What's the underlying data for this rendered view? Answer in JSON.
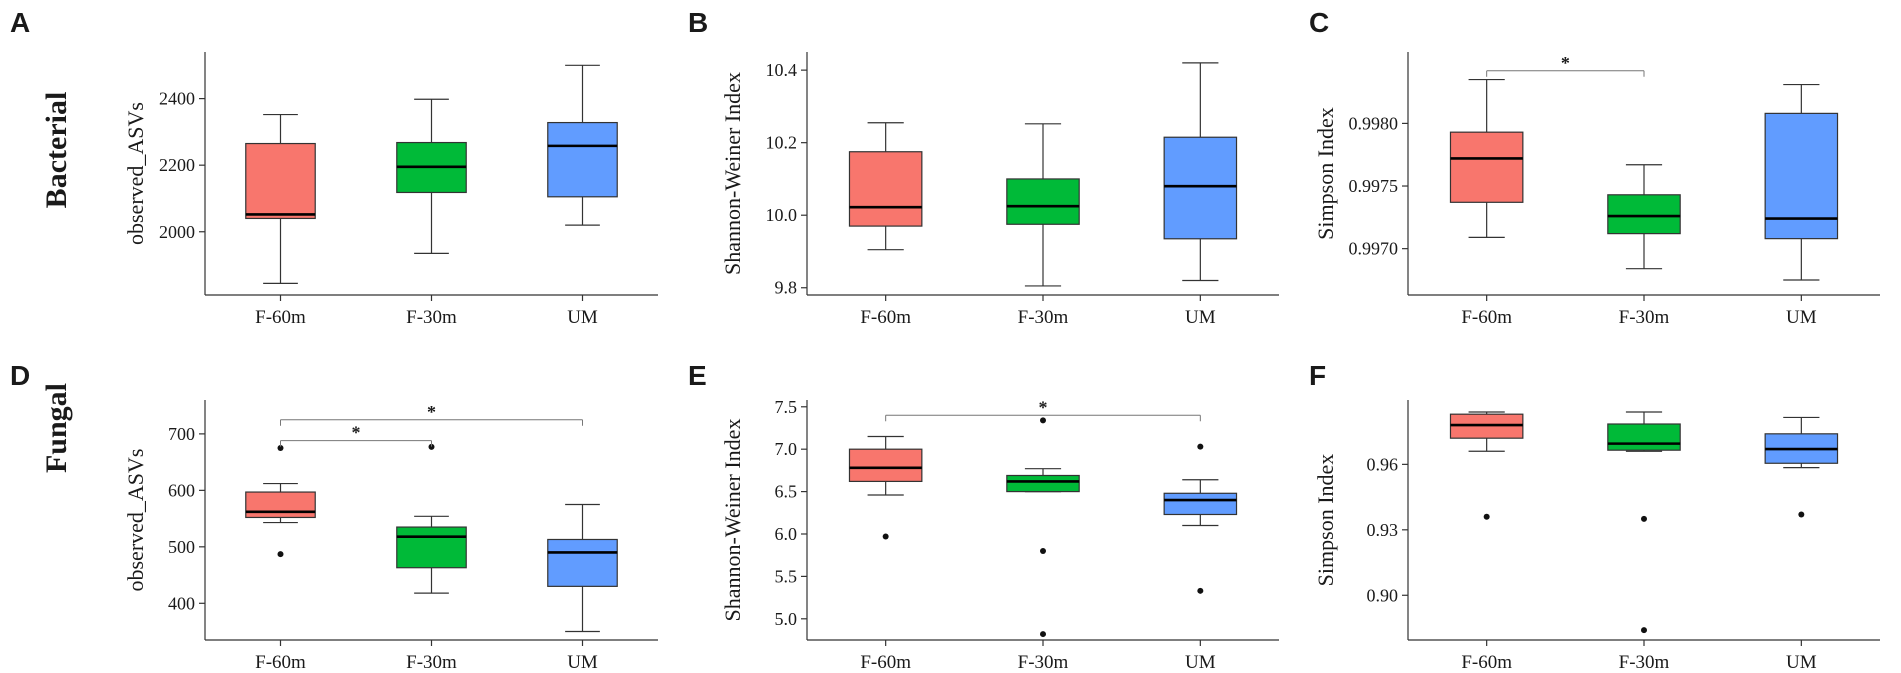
{
  "row_labels": [
    "Bacterial",
    "Fungal"
  ],
  "colors": {
    "F-60m": "#F8766D",
    "F-30m": "#00BA38",
    "UM": "#619CFF",
    "axis": "#333333",
    "median": "#000000",
    "whisker": "#333333"
  },
  "chart_data": [
    {
      "panel": "A",
      "type": "box",
      "ylabel": "observed_ASVs",
      "categories": [
        "F-60m",
        "F-30m",
        "UM"
      ],
      "ylim": [
        1810,
        2540
      ],
      "yticks": [
        2000,
        2200,
        2400
      ],
      "ytick_labels": [
        "2000",
        "2200",
        "2400"
      ],
      "boxes": [
        {
          "min": 1845,
          "q1": 2040,
          "median": 2052,
          "q3": 2265,
          "max": 2352,
          "outliers": []
        },
        {
          "min": 1935,
          "q1": 2118,
          "median": 2195,
          "q3": 2268,
          "max": 2398,
          "outliers": []
        },
        {
          "min": 2020,
          "q1": 2105,
          "median": 2258,
          "q3": 2328,
          "max": 2500,
          "outliers": []
        }
      ],
      "significance": []
    },
    {
      "panel": "B",
      "type": "box",
      "ylabel": "Shannon-Weiner Index",
      "categories": [
        "F-60m",
        "F-30m",
        "UM"
      ],
      "ylim": [
        9.78,
        10.45
      ],
      "yticks": [
        9.8,
        10.0,
        10.2,
        10.4
      ],
      "ytick_labels": [
        "9.8",
        "10.0",
        "10.2",
        "10.4"
      ],
      "boxes": [
        {
          "min": 9.905,
          "q1": 9.97,
          "median": 10.022,
          "q3": 10.175,
          "max": 10.255,
          "outliers": []
        },
        {
          "min": 9.805,
          "q1": 9.975,
          "median": 10.025,
          "q3": 10.1,
          "max": 10.252,
          "outliers": []
        },
        {
          "min": 9.82,
          "q1": 9.935,
          "median": 10.08,
          "q3": 10.215,
          "max": 10.42,
          "outliers": []
        }
      ],
      "significance": []
    },
    {
      "panel": "C",
      "type": "box",
      "ylabel": "Simpson Index",
      "categories": [
        "F-60m",
        "F-30m",
        "UM"
      ],
      "ylim": [
        0.99663,
        0.99857
      ],
      "yticks": [
        0.997,
        0.9975,
        0.998
      ],
      "ytick_labels": [
        "0.9970",
        "0.9975",
        "0.9980"
      ],
      "boxes": [
        {
          "min": 0.99709,
          "q1": 0.99737,
          "median": 0.99772,
          "q3": 0.99793,
          "max": 0.99835,
          "outliers": []
        },
        {
          "min": 0.99684,
          "q1": 0.99712,
          "median": 0.99726,
          "q3": 0.99743,
          "max": 0.99767,
          "outliers": []
        },
        {
          "min": 0.99675,
          "q1": 0.99708,
          "median": 0.99724,
          "q3": 0.99808,
          "max": 0.99831,
          "outliers": []
        }
      ],
      "significance": [
        {
          "from": 0,
          "to": 1,
          "level": 0.99842,
          "label": "*"
        }
      ]
    },
    {
      "panel": "D",
      "type": "box",
      "ylabel": "observed_ASVs",
      "categories": [
        "F-60m",
        "F-30m",
        "UM"
      ],
      "ylim": [
        335,
        760
      ],
      "yticks": [
        400,
        500,
        600,
        700
      ],
      "ytick_labels": [
        "400",
        "500",
        "600",
        "700"
      ],
      "boxes": [
        {
          "min": 543,
          "q1": 552,
          "median": 562,
          "q3": 597,
          "max": 612,
          "outliers": [
            675,
            487
          ]
        },
        {
          "min": 418,
          "q1": 463,
          "median": 518,
          "q3": 535,
          "max": 554,
          "outliers": [
            677
          ]
        },
        {
          "min": 350,
          "q1": 430,
          "median": 490,
          "q3": 513,
          "max": 575,
          "outliers": []
        }
      ],
      "significance": [
        {
          "from": 0,
          "to": 1,
          "level": 688,
          "label": "*"
        },
        {
          "from": 0,
          "to": 2,
          "level": 725,
          "label": "*"
        }
      ]
    },
    {
      "panel": "E",
      "type": "box",
      "ylabel": "Shannon-Weiner Index",
      "categories": [
        "F-60m",
        "F-30m",
        "UM"
      ],
      "ylim": [
        4.75,
        7.58
      ],
      "yticks": [
        5.0,
        5.5,
        6.0,
        6.5,
        7.0,
        7.5
      ],
      "ytick_labels": [
        "5.0",
        "5.5",
        "6.0",
        "6.5",
        "7.0",
        "7.5"
      ],
      "boxes": [
        {
          "min": 6.46,
          "q1": 6.62,
          "median": 6.78,
          "q3": 7.0,
          "max": 7.15,
          "outliers": [
            5.97
          ]
        },
        {
          "min": 6.5,
          "q1": 6.5,
          "median": 6.62,
          "q3": 6.69,
          "max": 6.77,
          "outliers": [
            7.34,
            5.8,
            4.82
          ]
        },
        {
          "min": 6.1,
          "q1": 6.23,
          "median": 6.4,
          "q3": 6.48,
          "max": 6.64,
          "outliers": [
            7.03,
            5.33
          ]
        }
      ],
      "significance": [
        {
          "from": 0,
          "to": 2,
          "level": 7.4,
          "label": "*"
        }
      ]
    },
    {
      "panel": "F",
      "type": "box",
      "ylabel": "Simpson Index",
      "categories": [
        "F-60m",
        "F-30m",
        "UM"
      ],
      "ylim": [
        0.8795,
        0.9895
      ],
      "yticks": [
        0.9,
        0.93,
        0.96
      ],
      "ytick_labels": [
        "0.90",
        "0.93",
        "0.96"
      ],
      "boxes": [
        {
          "min": 0.966,
          "q1": 0.972,
          "median": 0.978,
          "q3": 0.983,
          "max": 0.984,
          "outliers": [
            0.936
          ]
        },
        {
          "min": 0.966,
          "q1": 0.9665,
          "median": 0.9695,
          "q3": 0.9785,
          "max": 0.984,
          "outliers": [
            0.935,
            0.884
          ]
        },
        {
          "min": 0.9585,
          "q1": 0.9605,
          "median": 0.967,
          "q3": 0.974,
          "max": 0.9815,
          "outliers": [
            0.937
          ]
        }
      ],
      "significance": []
    }
  ]
}
